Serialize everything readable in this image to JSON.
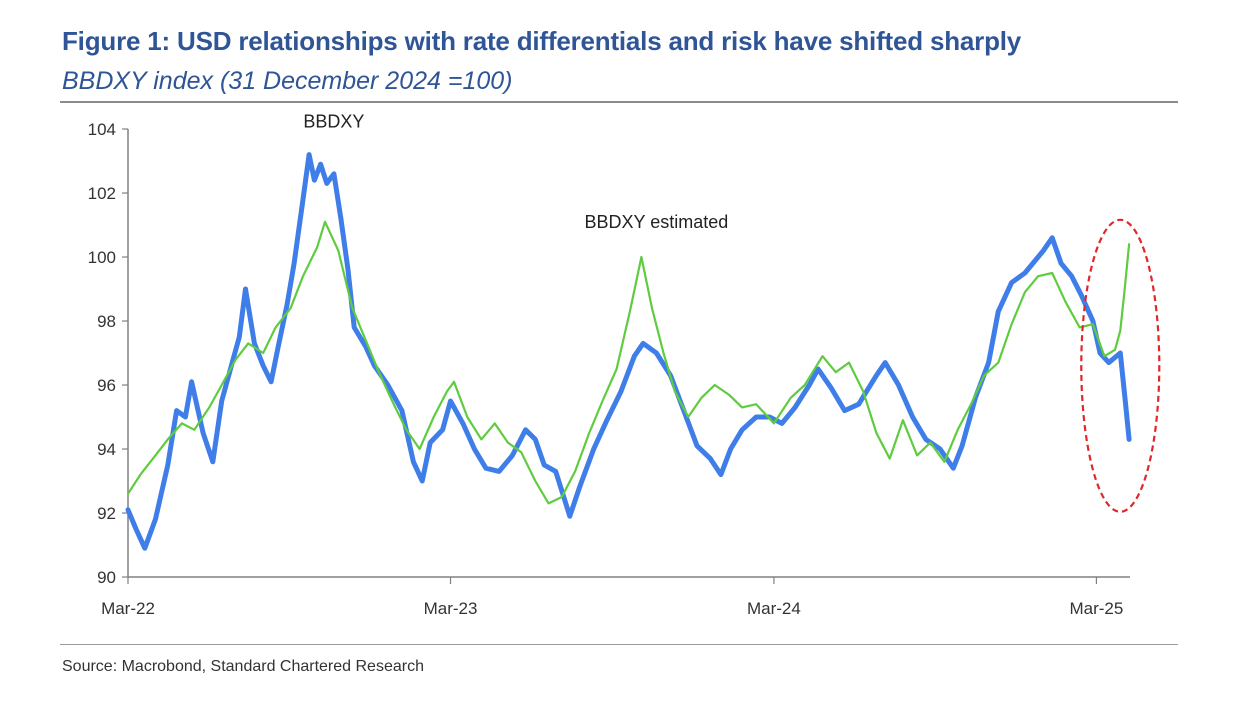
{
  "figure": {
    "title": "Figure 1: USD relationships with rate differentials and risk have shifted sharply",
    "subtitle": "BBDXY index (31 December 2024 =100)",
    "source": "Source: Macrobond, Standard Chartered Research"
  },
  "colors": {
    "title": "#2f5597",
    "bbdxy": "#3f7ee8",
    "estimated": "#5fcc3f",
    "highlight": "#e0282b",
    "axis": "#808080"
  },
  "chart_data": {
    "type": "line",
    "ylim": [
      90,
      104
    ],
    "yticks": [
      90,
      92,
      94,
      96,
      98,
      100,
      102,
      104
    ],
    "ytick_labels": [
      "90",
      "92",
      "94",
      "96",
      "98",
      "100",
      "102",
      "104"
    ],
    "xlim": [
      "2022-03-01",
      "2025-04-08"
    ],
    "xticks": [
      "2022-03-01",
      "2023-03-01",
      "2024-03-01",
      "2025-03-01"
    ],
    "xtick_labels": [
      "Mar-22",
      "Mar-23",
      "Mar-24",
      "Mar-25"
    ],
    "grid": false,
    "highlight": "dashed ellipse around Mar-25 divergence",
    "series": [
      {
        "name": "BBDXY",
        "color": "#3f7ee8",
        "data": [
          [
            "2022-03-01",
            92.1
          ],
          [
            "2022-03-10",
            91.5
          ],
          [
            "2022-03-20",
            90.9
          ],
          [
            "2022-04-01",
            91.8
          ],
          [
            "2022-04-15",
            93.5
          ],
          [
            "2022-04-25",
            95.2
          ],
          [
            "2022-05-05",
            95.0
          ],
          [
            "2022-05-12",
            96.1
          ],
          [
            "2022-05-25",
            94.5
          ],
          [
            "2022-06-05",
            93.6
          ],
          [
            "2022-06-15",
            95.5
          ],
          [
            "2022-06-28",
            96.8
          ],
          [
            "2022-07-05",
            97.5
          ],
          [
            "2022-07-12",
            99.0
          ],
          [
            "2022-07-22",
            97.3
          ],
          [
            "2022-08-01",
            96.6
          ],
          [
            "2022-08-10",
            96.1
          ],
          [
            "2022-08-18",
            97.2
          ],
          [
            "2022-08-28",
            98.5
          ],
          [
            "2022-09-05",
            99.8
          ],
          [
            "2022-09-15",
            101.8
          ],
          [
            "2022-09-22",
            103.2
          ],
          [
            "2022-09-28",
            102.4
          ],
          [
            "2022-10-05",
            102.9
          ],
          [
            "2022-10-12",
            102.3
          ],
          [
            "2022-10-20",
            102.6
          ],
          [
            "2022-10-28",
            101.2
          ],
          [
            "2022-11-05",
            99.6
          ],
          [
            "2022-11-12",
            97.8
          ],
          [
            "2022-11-25",
            97.2
          ],
          [
            "2022-12-05",
            96.6
          ],
          [
            "2022-12-20",
            96.0
          ],
          [
            "2023-01-05",
            95.2
          ],
          [
            "2023-01-18",
            93.6
          ],
          [
            "2023-01-28",
            93.0
          ],
          [
            "2023-02-06",
            94.2
          ],
          [
            "2023-02-20",
            94.6
          ],
          [
            "2023-03-01",
            95.5
          ],
          [
            "2023-03-15",
            94.8
          ],
          [
            "2023-03-28",
            94.0
          ],
          [
            "2023-04-10",
            93.4
          ],
          [
            "2023-04-25",
            93.3
          ],
          [
            "2023-05-10",
            93.8
          ],
          [
            "2023-05-25",
            94.6
          ],
          [
            "2023-06-05",
            94.3
          ],
          [
            "2023-06-15",
            93.5
          ],
          [
            "2023-06-28",
            93.3
          ],
          [
            "2023-07-14",
            91.9
          ],
          [
            "2023-07-25",
            92.8
          ],
          [
            "2023-08-10",
            94.0
          ],
          [
            "2023-08-25",
            94.9
          ],
          [
            "2023-09-10",
            95.8
          ],
          [
            "2023-09-25",
            96.9
          ],
          [
            "2023-10-05",
            97.3
          ],
          [
            "2023-10-20",
            97.0
          ],
          [
            "2023-11-05",
            96.3
          ],
          [
            "2023-11-20",
            95.2
          ],
          [
            "2023-12-05",
            94.1
          ],
          [
            "2023-12-20",
            93.7
          ],
          [
            "2024-01-01",
            93.2
          ],
          [
            "2024-01-12",
            94.0
          ],
          [
            "2024-01-25",
            94.6
          ],
          [
            "2024-02-10",
            95.0
          ],
          [
            "2024-02-25",
            95.0
          ],
          [
            "2024-03-10",
            94.8
          ],
          [
            "2024-03-25",
            95.3
          ],
          [
            "2024-04-10",
            96.0
          ],
          [
            "2024-04-20",
            96.5
          ],
          [
            "2024-05-05",
            95.9
          ],
          [
            "2024-05-20",
            95.2
          ],
          [
            "2024-06-05",
            95.4
          ],
          [
            "2024-06-25",
            96.3
          ],
          [
            "2024-07-05",
            96.7
          ],
          [
            "2024-07-20",
            96.0
          ],
          [
            "2024-08-05",
            95.0
          ],
          [
            "2024-08-20",
            94.3
          ],
          [
            "2024-09-05",
            94.0
          ],
          [
            "2024-09-20",
            93.4
          ],
          [
            "2024-09-30",
            94.1
          ],
          [
            "2024-10-15",
            95.6
          ],
          [
            "2024-10-30",
            96.7
          ],
          [
            "2024-11-10",
            98.3
          ],
          [
            "2024-11-25",
            99.2
          ],
          [
            "2024-12-10",
            99.5
          ],
          [
            "2024-12-31",
            100.2
          ],
          [
            "2025-01-10",
            100.6
          ],
          [
            "2025-01-20",
            99.8
          ],
          [
            "2025-02-01",
            99.4
          ],
          [
            "2025-02-12",
            98.8
          ],
          [
            "2025-02-25",
            98.0
          ],
          [
            "2025-03-05",
            97.0
          ],
          [
            "2025-03-15",
            96.7
          ],
          [
            "2025-03-28",
            97.0
          ],
          [
            "2025-04-03",
            95.4
          ],
          [
            "2025-04-07",
            94.3
          ]
        ]
      },
      {
        "name": "BBDXY estimated",
        "color": "#5fcc3f",
        "data": [
          [
            "2022-03-01",
            92.6
          ],
          [
            "2022-03-15",
            93.2
          ],
          [
            "2022-04-01",
            93.8
          ],
          [
            "2022-04-15",
            94.3
          ],
          [
            "2022-05-01",
            94.8
          ],
          [
            "2022-05-15",
            94.6
          ],
          [
            "2022-06-01",
            95.3
          ],
          [
            "2022-06-15",
            96.0
          ],
          [
            "2022-07-01",
            96.8
          ],
          [
            "2022-07-15",
            97.3
          ],
          [
            "2022-08-01",
            97.0
          ],
          [
            "2022-08-15",
            97.8
          ],
          [
            "2022-09-01",
            98.4
          ],
          [
            "2022-09-15",
            99.4
          ],
          [
            "2022-10-01",
            100.3
          ],
          [
            "2022-10-10",
            101.1
          ],
          [
            "2022-10-25",
            100.2
          ],
          [
            "2022-11-10",
            98.4
          ],
          [
            "2022-11-25",
            97.4
          ],
          [
            "2022-12-10",
            96.4
          ],
          [
            "2022-12-25",
            95.5
          ],
          [
            "2023-01-10",
            94.6
          ],
          [
            "2023-01-25",
            94.0
          ],
          [
            "2023-02-10",
            95.0
          ],
          [
            "2023-02-25",
            95.8
          ],
          [
            "2023-03-05",
            96.1
          ],
          [
            "2023-03-20",
            95.0
          ],
          [
            "2023-04-05",
            94.3
          ],
          [
            "2023-04-20",
            94.8
          ],
          [
            "2023-05-05",
            94.2
          ],
          [
            "2023-05-20",
            93.9
          ],
          [
            "2023-06-05",
            93.0
          ],
          [
            "2023-06-20",
            92.3
          ],
          [
            "2023-07-05",
            92.5
          ],
          [
            "2023-07-20",
            93.3
          ],
          [
            "2023-08-05",
            94.5
          ],
          [
            "2023-08-20",
            95.5
          ],
          [
            "2023-09-05",
            96.5
          ],
          [
            "2023-09-20",
            98.3
          ],
          [
            "2023-10-03",
            100.0
          ],
          [
            "2023-10-15",
            98.4
          ],
          [
            "2023-10-28",
            97.0
          ],
          [
            "2023-11-10",
            95.8
          ],
          [
            "2023-11-25",
            95.0
          ],
          [
            "2023-12-10",
            95.6
          ],
          [
            "2023-12-25",
            96.0
          ],
          [
            "2024-01-10",
            95.7
          ],
          [
            "2024-01-25",
            95.3
          ],
          [
            "2024-02-10",
            95.4
          ],
          [
            "2024-03-01",
            94.8
          ],
          [
            "2024-03-20",
            95.6
          ],
          [
            "2024-04-05",
            96.0
          ],
          [
            "2024-04-25",
            96.9
          ],
          [
            "2024-05-10",
            96.4
          ],
          [
            "2024-05-25",
            96.7
          ],
          [
            "2024-06-10",
            95.8
          ],
          [
            "2024-06-25",
            94.5
          ],
          [
            "2024-07-10",
            93.7
          ],
          [
            "2024-07-25",
            94.9
          ],
          [
            "2024-08-10",
            93.8
          ],
          [
            "2024-08-25",
            94.2
          ],
          [
            "2024-09-10",
            93.6
          ],
          [
            "2024-09-25",
            94.6
          ],
          [
            "2024-10-10",
            95.4
          ],
          [
            "2024-10-25",
            96.3
          ],
          [
            "2024-11-10",
            96.7
          ],
          [
            "2024-11-25",
            97.9
          ],
          [
            "2024-12-10",
            98.9
          ],
          [
            "2024-12-25",
            99.4
          ],
          [
            "2025-01-10",
            99.5
          ],
          [
            "2025-01-25",
            98.6
          ],
          [
            "2025-02-10",
            97.8
          ],
          [
            "2025-02-25",
            97.9
          ],
          [
            "2025-03-10",
            96.9
          ],
          [
            "2025-03-22",
            97.1
          ],
          [
            "2025-03-28",
            97.7
          ],
          [
            "2025-04-02",
            99.0
          ],
          [
            "2025-04-07",
            100.4
          ]
        ]
      }
    ],
    "annotations": [
      {
        "text": "BBDXY",
        "x": "2022-10-20",
        "y": 104.05
      },
      {
        "text": "BBDXY estimated",
        "x": "2023-10-20",
        "y": 100.9
      }
    ]
  }
}
